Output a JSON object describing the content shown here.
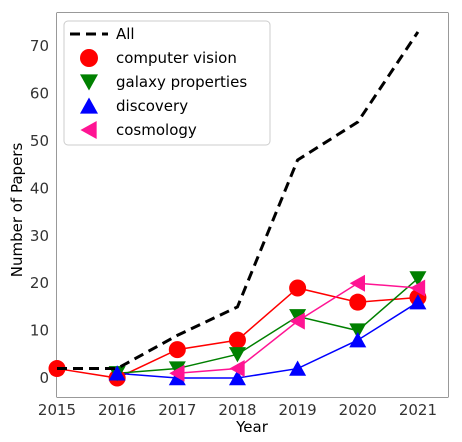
{
  "chart_data": {
    "type": "line",
    "xlabel": "Year",
    "ylabel": "Number of Papers",
    "xlim": [
      2015,
      2021.5
    ],
    "ylim": [
      -4,
      77
    ],
    "x": [
      2015,
      2016,
      2017,
      2018,
      2019,
      2020,
      2021
    ],
    "x_ticks": [
      "2015",
      "2016",
      "2017",
      "2018",
      "2019",
      "2020",
      "2021"
    ],
    "y_ticks": [
      0,
      10,
      20,
      30,
      40,
      50,
      60,
      70
    ],
    "grid": true,
    "legend_position": "top-left",
    "series": [
      {
        "name": "All",
        "values": [
          2,
          2,
          9,
          15,
          46,
          54,
          73
        ],
        "color": "#000000",
        "marker": "none",
        "dashed": true
      },
      {
        "name": "computer vision",
        "values": [
          2,
          0,
          6,
          8,
          19,
          16,
          17
        ],
        "color": "#ff0000",
        "marker": "circle"
      },
      {
        "name": "galaxy properties",
        "values": [
          null,
          1,
          2,
          5,
          13,
          10,
          21
        ],
        "color": "#008000",
        "marker": "triangle-down"
      },
      {
        "name": "discovery",
        "values": [
          null,
          1,
          0,
          0,
          2,
          8,
          16
        ],
        "color": "#0000ff",
        "marker": "triangle-up"
      },
      {
        "name": "cosmology",
        "values": [
          null,
          null,
          1,
          2,
          12,
          20,
          19
        ],
        "color": "#ff1493",
        "marker": "triangle-left"
      }
    ]
  }
}
